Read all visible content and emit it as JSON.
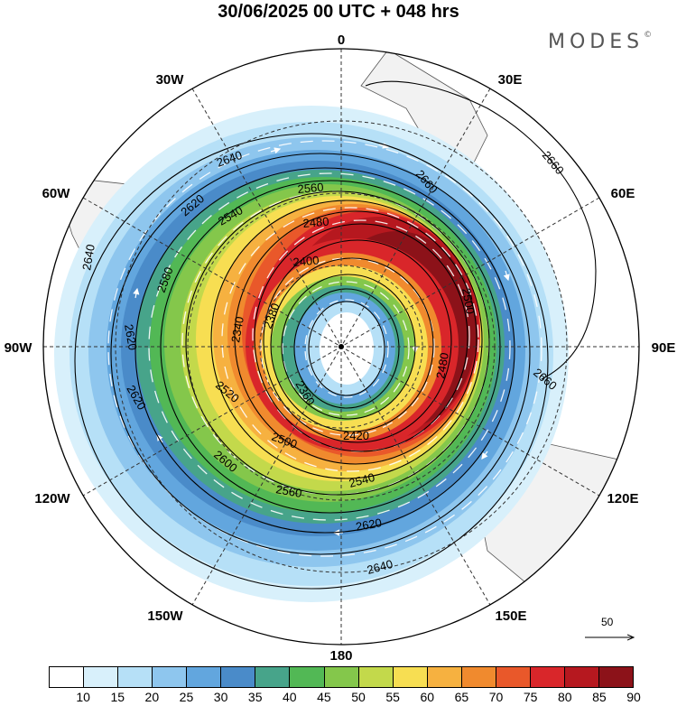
{
  "header": {
    "title": "30/06/2025  00 UTC  + 048 hrs",
    "brand": "MODES",
    "brand_mark": "©"
  },
  "map": {
    "projection": "polar-stereographic-south",
    "lon_labels": [
      "0",
      "30E",
      "60E",
      "90E",
      "120E",
      "150E",
      "180",
      "150W",
      "120W",
      "90W",
      "60W",
      "30W"
    ],
    "contour_labels": [
      "2640",
      "2620",
      "2580",
      "2560",
      "2540",
      "2480",
      "2400",
      "2380",
      "2360",
      "2340",
      "2420",
      "2500",
      "2520",
      "2600",
      "2660",
      "2660",
      "2660",
      "2620",
      "2640",
      "2620",
      "2620",
      "2640",
      "2540",
      "2560",
      "2480",
      "2500"
    ],
    "colors": {
      "land": "#f2f2f2",
      "coast": "#555555",
      "contour": "#000000",
      "vector": "#ffffff",
      "grid": "#333333"
    }
  },
  "legend": {
    "levels": [
      "10",
      "15",
      "20",
      "25",
      "30",
      "35",
      "40",
      "45",
      "50",
      "55",
      "60",
      "65",
      "70",
      "75",
      "80",
      "85",
      "90"
    ],
    "colors": [
      "#ffffff",
      "#d8f0fb",
      "#b6e0f7",
      "#8ec6ee",
      "#62a6de",
      "#4a8bc9",
      "#47a48a",
      "#52b855",
      "#84c74b",
      "#c3d94b",
      "#f7de52",
      "#f6b140",
      "#f08a2e",
      "#e9582a",
      "#d9262a",
      "#b6181f",
      "#8c1219"
    ],
    "reference_vector": "50"
  }
}
